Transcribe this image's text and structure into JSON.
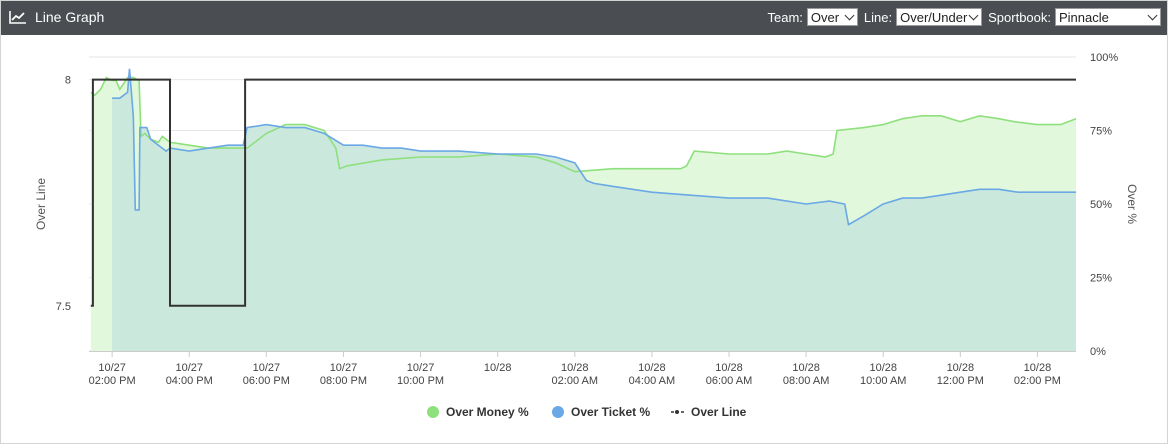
{
  "header": {
    "title": "Line Graph",
    "icon": "line-chart-icon",
    "team_label": "Team:",
    "team_value": "Over",
    "line_label": "Line:",
    "line_value": "Over/Under",
    "sportbook_label": "Sportbook:",
    "sportbook_value": "Pinnacle"
  },
  "colors": {
    "header_bg": "#4a4d51",
    "money": "#8ee07c",
    "money_fill": "#e2f8dc",
    "ticket": "#6aa8e6",
    "ticket_fill": "#c8e6dc",
    "line": "#333333"
  },
  "chart_data": {
    "type": "line",
    "title": "",
    "x_ticks": [
      {
        "t": 14,
        "date": "10/27",
        "time": "02:00 PM"
      },
      {
        "t": 16,
        "date": "10/27",
        "time": "04:00 PM"
      },
      {
        "t": 18,
        "date": "10/27",
        "time": "06:00 PM"
      },
      {
        "t": 20,
        "date": "10/27",
        "time": "08:00 PM"
      },
      {
        "t": 22,
        "date": "10/27",
        "time": "10:00 PM"
      },
      {
        "t": 24,
        "date": "10/28",
        "time": ""
      },
      {
        "t": 26,
        "date": "10/28",
        "time": "02:00 AM"
      },
      {
        "t": 28,
        "date": "10/28",
        "time": "04:00 AM"
      },
      {
        "t": 30,
        "date": "10/28",
        "time": "06:00 AM"
      },
      {
        "t": 32,
        "date": "10/28",
        "time": "08:00 AM"
      },
      {
        "t": 34,
        "date": "10/28",
        "time": "10:00 AM"
      },
      {
        "t": 36,
        "date": "10/28",
        "time": "12:00 PM"
      },
      {
        "t": 38,
        "date": "10/28",
        "time": "02:00 PM"
      }
    ],
    "x_range": [
      13.4,
      39.0
    ],
    "y_left": {
      "label": "Over Line",
      "ticks": [
        7.5,
        8
      ],
      "range": [
        7.4,
        8.05
      ]
    },
    "y_right": {
      "label": "Over %",
      "ticks": [
        "0%",
        "25%",
        "50%",
        "75%",
        "100%"
      ],
      "range": [
        0,
        100
      ]
    },
    "series": [
      {
        "name": "Over Money %",
        "axis": "right",
        "points": [
          [
            13.45,
            88
          ],
          [
            13.55,
            87
          ],
          [
            13.7,
            89
          ],
          [
            13.85,
            93
          ],
          [
            14.0,
            92
          ],
          [
            14.1,
            92
          ],
          [
            14.2,
            89
          ],
          [
            14.4,
            93
          ],
          [
            14.55,
            93
          ],
          [
            14.7,
            92
          ],
          [
            14.75,
            73
          ],
          [
            14.85,
            74
          ],
          [
            15.0,
            72
          ],
          [
            15.2,
            71
          ],
          [
            15.3,
            73
          ],
          [
            15.5,
            71
          ],
          [
            16.0,
            70
          ],
          [
            16.5,
            69
          ],
          [
            17.0,
            69
          ],
          [
            17.5,
            69
          ],
          [
            18.0,
            74
          ],
          [
            18.5,
            77
          ],
          [
            19.0,
            77
          ],
          [
            19.5,
            75
          ],
          [
            19.8,
            69
          ],
          [
            19.9,
            62
          ],
          [
            20.1,
            63
          ],
          [
            21.0,
            65
          ],
          [
            22.0,
            66
          ],
          [
            23.0,
            66
          ],
          [
            24.0,
            67
          ],
          [
            25.0,
            66
          ],
          [
            25.5,
            64
          ],
          [
            26.0,
            61
          ],
          [
            27.0,
            62
          ],
          [
            28.0,
            62
          ],
          [
            28.75,
            62
          ],
          [
            28.9,
            63
          ],
          [
            29.1,
            68
          ],
          [
            30.0,
            67
          ],
          [
            31.0,
            67
          ],
          [
            31.5,
            68
          ],
          [
            32.0,
            67
          ],
          [
            32.5,
            66
          ],
          [
            32.7,
            67
          ],
          [
            32.8,
            75
          ],
          [
            33.5,
            76
          ],
          [
            34.0,
            77
          ],
          [
            34.5,
            79
          ],
          [
            35.0,
            80
          ],
          [
            35.5,
            80
          ],
          [
            36.0,
            78
          ],
          [
            36.5,
            80
          ],
          [
            37.0,
            79
          ],
          [
            37.4,
            78
          ],
          [
            38.0,
            77
          ],
          [
            38.6,
            77
          ],
          [
            39.0,
            79
          ]
        ]
      },
      {
        "name": "Over Ticket %",
        "axis": "right",
        "points": [
          [
            14.0,
            86
          ],
          [
            14.2,
            86
          ],
          [
            14.4,
            88
          ],
          [
            14.45,
            96
          ],
          [
            14.55,
            80
          ],
          [
            14.6,
            48
          ],
          [
            14.7,
            48
          ],
          [
            14.72,
            76
          ],
          [
            14.9,
            76
          ],
          [
            15.0,
            72
          ],
          [
            15.2,
            70
          ],
          [
            15.4,
            68
          ],
          [
            15.5,
            69
          ],
          [
            16.0,
            68
          ],
          [
            16.5,
            69
          ],
          [
            17.0,
            70
          ],
          [
            17.4,
            70
          ],
          [
            17.5,
            76
          ],
          [
            18.0,
            77
          ],
          [
            18.5,
            76
          ],
          [
            19.0,
            76
          ],
          [
            19.5,
            74
          ],
          [
            20.0,
            70
          ],
          [
            20.1,
            70
          ],
          [
            20.5,
            70
          ],
          [
            21.0,
            69
          ],
          [
            21.5,
            69
          ],
          [
            22.0,
            68
          ],
          [
            23.0,
            68
          ],
          [
            24.0,
            67
          ],
          [
            25.0,
            67
          ],
          [
            25.5,
            66
          ],
          [
            26.0,
            64
          ],
          [
            26.3,
            58
          ],
          [
            26.5,
            57
          ],
          [
            27.0,
            56
          ],
          [
            28.0,
            54
          ],
          [
            29.0,
            53
          ],
          [
            30.0,
            52
          ],
          [
            31.0,
            52
          ],
          [
            32.0,
            50
          ],
          [
            32.6,
            51
          ],
          [
            33.0,
            50
          ],
          [
            33.1,
            43
          ],
          [
            33.5,
            46
          ],
          [
            34.0,
            50
          ],
          [
            34.5,
            52
          ],
          [
            35.0,
            52
          ],
          [
            35.5,
            53
          ],
          [
            36.0,
            54
          ],
          [
            36.5,
            55
          ],
          [
            37.0,
            55
          ],
          [
            37.5,
            54
          ],
          [
            38.0,
            54
          ],
          [
            39.0,
            54
          ]
        ]
      },
      {
        "name": "Over Line",
        "axis": "left",
        "points": [
          [
            13.45,
            7.5
          ],
          [
            13.5,
            7.5
          ],
          [
            13.5,
            8
          ],
          [
            15.5,
            8
          ],
          [
            15.5,
            7.5
          ],
          [
            17.45,
            7.5
          ],
          [
            17.45,
            8
          ],
          [
            39.0,
            8
          ]
        ]
      }
    ],
    "legend": [
      "Over Money %",
      "Over Ticket %",
      "Over Line"
    ],
    "legend_position": "bottom-center",
    "grid": true
  }
}
